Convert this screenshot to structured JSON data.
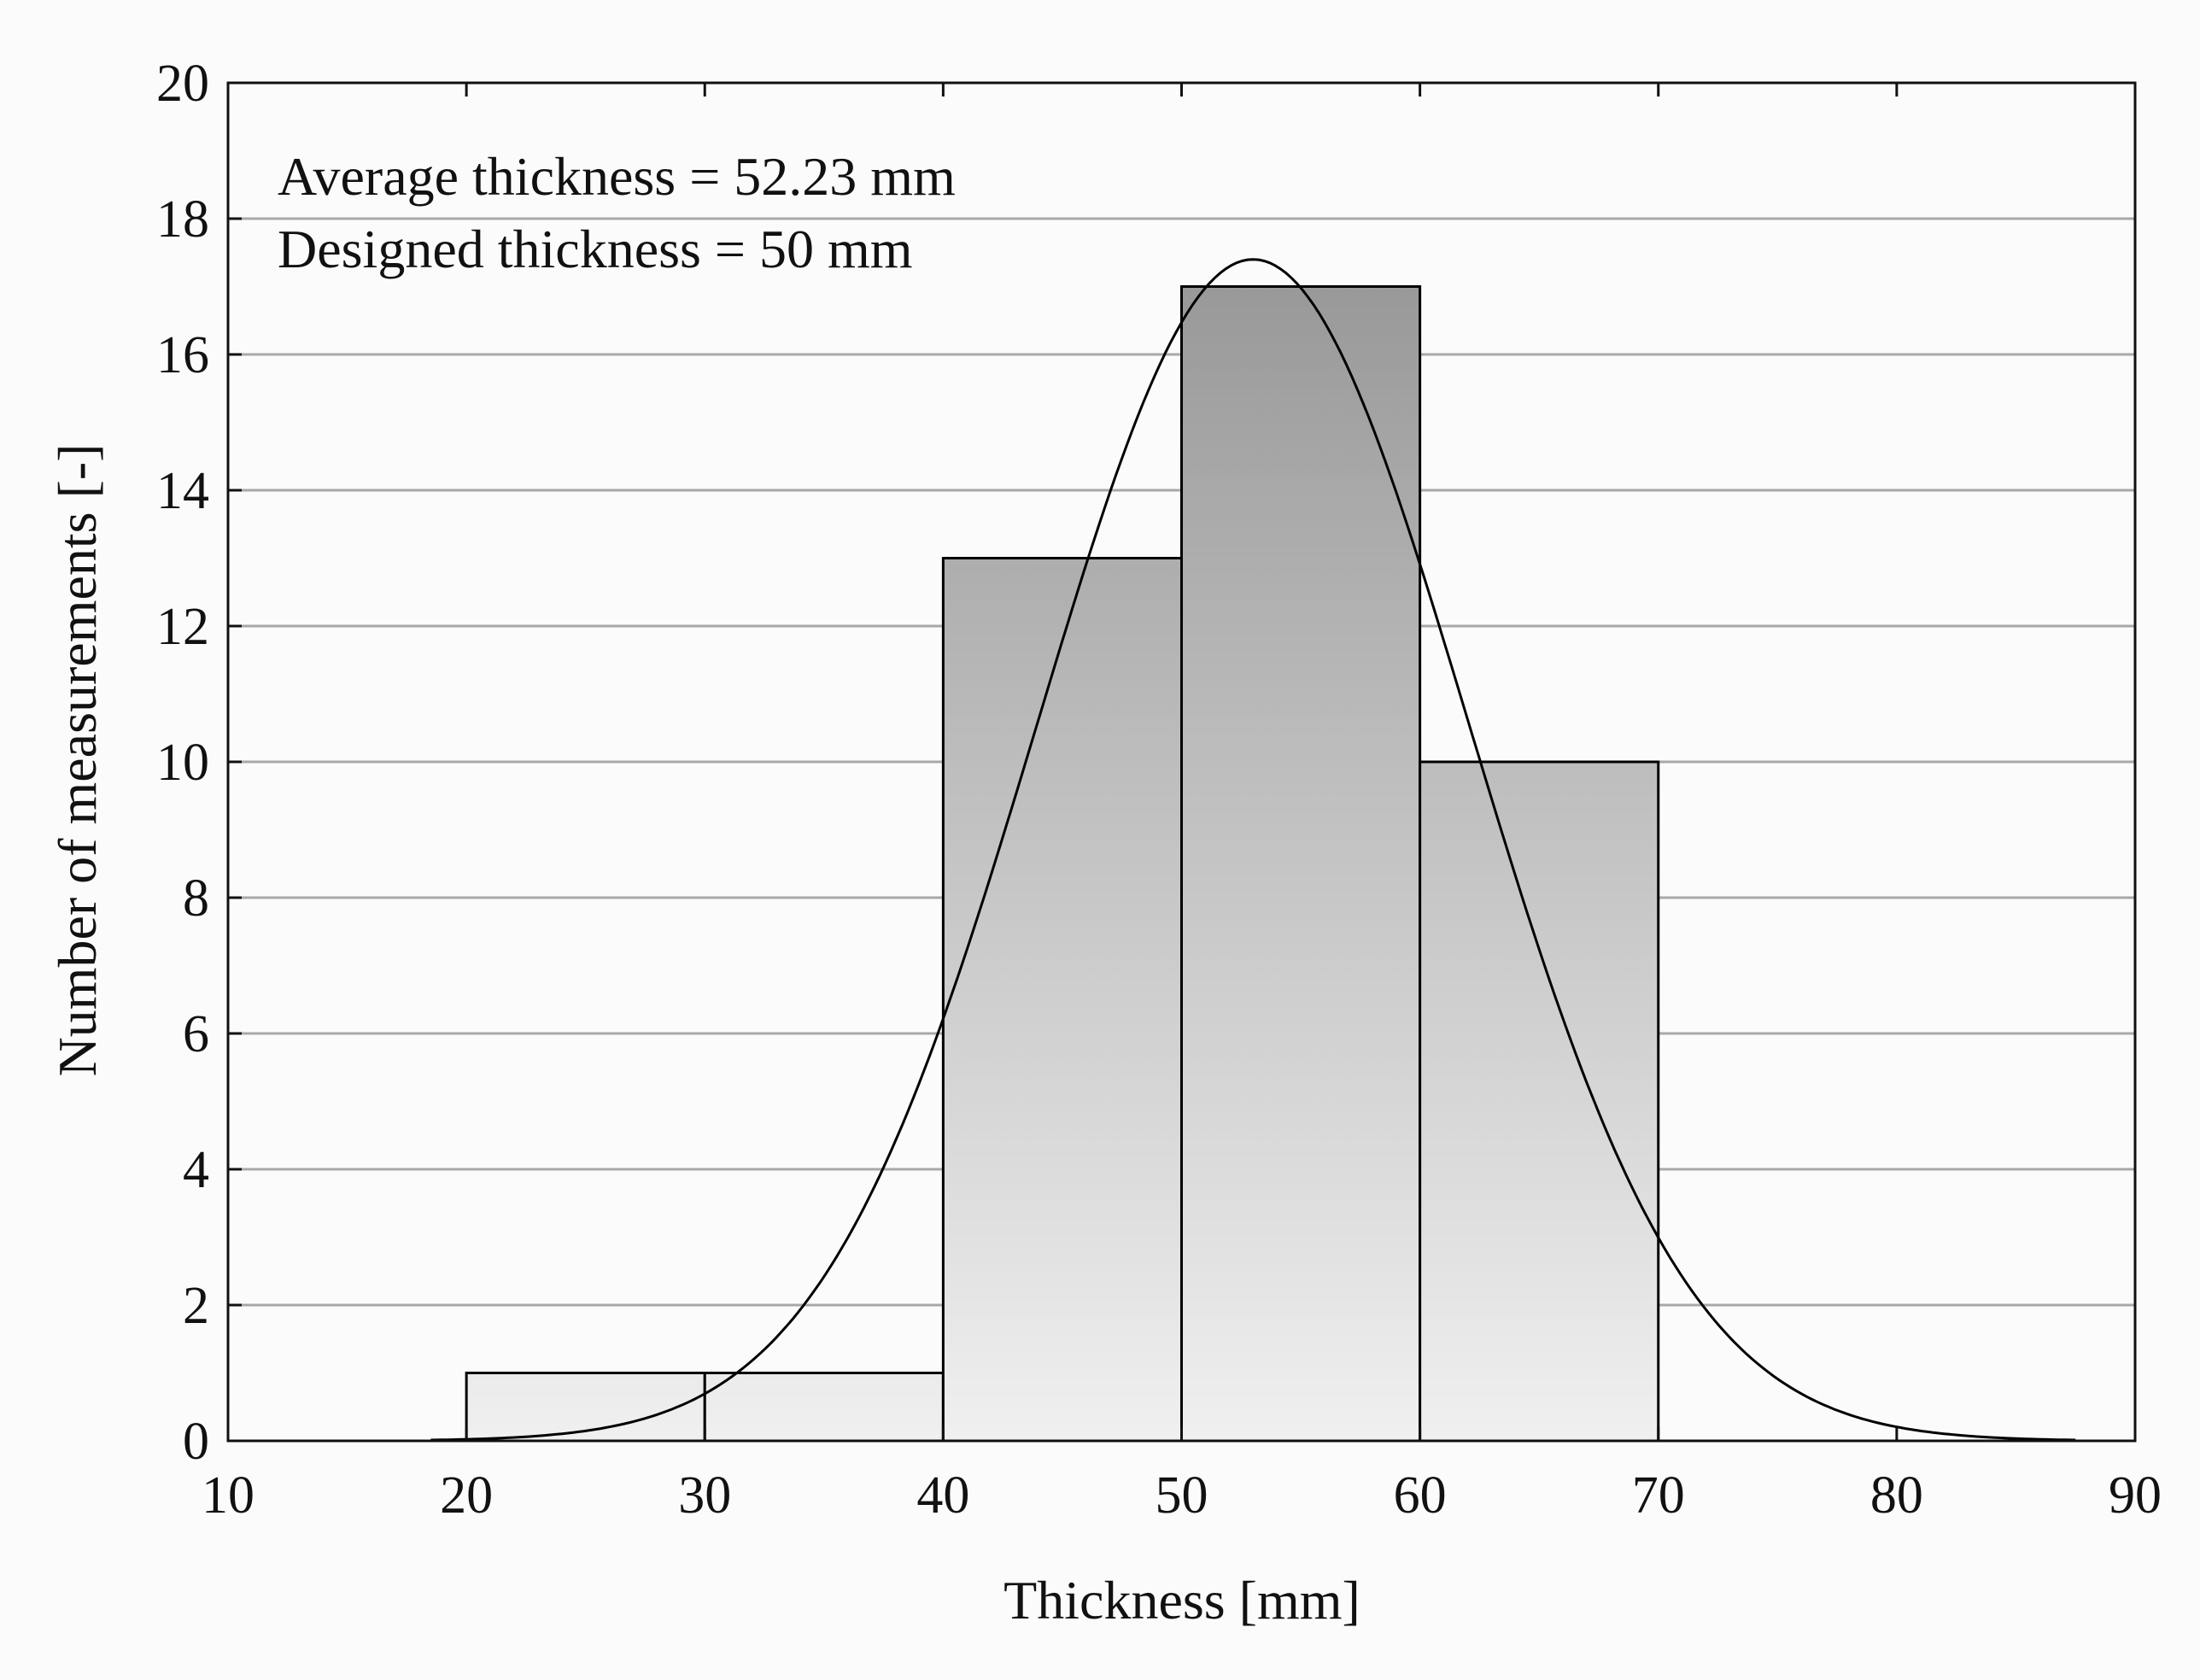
{
  "chart_data": {
    "type": "bar",
    "title": "",
    "xlabel": "Thickness [mm]",
    "ylabel": "Number of measurements [-]",
    "xlim": [
      10,
      90
    ],
    "ylim": [
      0,
      20
    ],
    "x_ticks": [
      10,
      20,
      30,
      40,
      50,
      60,
      70,
      80,
      90
    ],
    "y_ticks": [
      0,
      2,
      4,
      6,
      8,
      10,
      12,
      14,
      16,
      18,
      20
    ],
    "grid": "horizontal",
    "bins": [
      {
        "start": 20,
        "end": 30,
        "value": 1
      },
      {
        "start": 30,
        "end": 40,
        "value": 1
      },
      {
        "start": 40,
        "end": 50,
        "value": 13
      },
      {
        "start": 50,
        "end": 60,
        "value": 17
      },
      {
        "start": 60,
        "end": 70,
        "value": 10
      }
    ],
    "fit_curve": {
      "type": "normal",
      "mean": 53.0,
      "peak_count": 17.4,
      "x_range": [
        18.5,
        87.5
      ]
    },
    "annotations": [
      "Average thickness = 52.23 mm",
      "Designed thickness = 50 mm"
    ]
  },
  "colors": {
    "bar_dark": "#999999",
    "bar_light": "#f0f0f0",
    "bar_edge": "#000000",
    "grid": "#a8a8a8",
    "curve": "#000000",
    "axis": "#111111"
  }
}
